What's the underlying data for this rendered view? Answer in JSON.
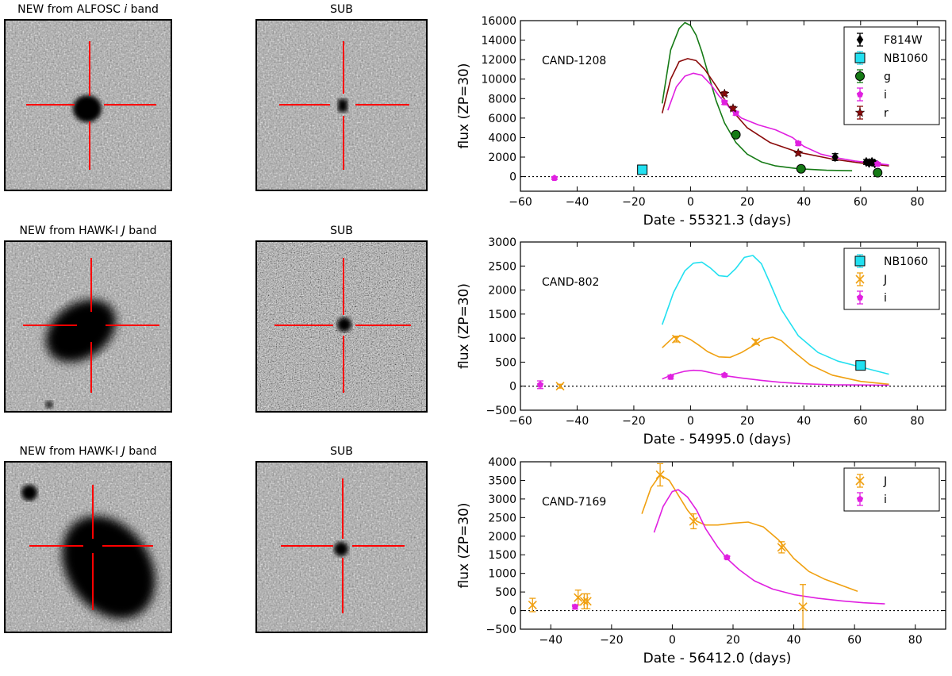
{
  "rows": [
    {
      "new_title_prefix": "NEW from ALFOSC ",
      "new_title_band": "i",
      "new_title_suffix": " band",
      "sub_title": "SUB"
    },
    {
      "new_title_prefix": "NEW from HAWK-I ",
      "new_title_band": "J",
      "new_title_suffix": " band",
      "sub_title": "SUB"
    },
    {
      "new_title_prefix": "NEW from HAWK-I ",
      "new_title_band": "J",
      "new_title_suffix": " band",
      "sub_title": "SUB"
    }
  ],
  "colors": {
    "F814W": "#000000",
    "NB1060": "#22e0f0",
    "g": "#157a15",
    "i": "#e020e0",
    "r": "#8a0a0a",
    "J": "#f0a010",
    "crosshair": "#ff0000"
  },
  "chart_data": [
    {
      "type": "line",
      "label": "CAND-1208",
      "ylabel": "flux (ZP=30)",
      "xlabel": "Date - 55321.3 (days)",
      "xlim": [
        -60,
        90
      ],
      "ylim": [
        -1500,
        16000
      ],
      "xticks": [
        -60,
        -40,
        -20,
        0,
        20,
        40,
        60,
        80
      ],
      "yticks": [
        0,
        2000,
        4000,
        6000,
        8000,
        10000,
        12000,
        14000,
        16000
      ],
      "xtick_labels": [
        "−60",
        "−40",
        "−20",
        "0",
        "20",
        "40",
        "60",
        "80"
      ],
      "ytick_labels": [
        "0",
        "2000",
        "4000",
        "6000",
        "8000",
        "10000",
        "12000",
        "14000",
        "16000"
      ],
      "legend": [
        "F814W",
        "NB1060",
        "g",
        "i",
        "r"
      ],
      "curves": [
        {
          "band": "g",
          "x": [
            -10,
            -7,
            -4,
            -2,
            0,
            2,
            4,
            6,
            9,
            12,
            16,
            20,
            25,
            30,
            38,
            48,
            57
          ],
          "y": [
            7500,
            13000,
            15200,
            15800,
            15500,
            14500,
            12800,
            10800,
            7800,
            5500,
            3500,
            2300,
            1500,
            1100,
            800,
            650,
            600
          ]
        },
        {
          "band": "r",
          "x": [
            -10,
            -7,
            -4,
            -1,
            2,
            5,
            9,
            14,
            20,
            28,
            38,
            50,
            60,
            70
          ],
          "y": [
            6500,
            10000,
            11800,
            12100,
            11900,
            11000,
            9300,
            7000,
            5000,
            3500,
            2500,
            1800,
            1400,
            1100
          ]
        },
        {
          "band": "i",
          "x": [
            -8,
            -5,
            -2,
            1,
            4,
            7,
            10,
            14,
            18,
            24,
            30,
            36,
            40,
            46,
            52,
            58,
            64,
            70
          ],
          "y": [
            6800,
            9200,
            10300,
            10600,
            10400,
            9500,
            8300,
            7000,
            6000,
            5300,
            4800,
            4000,
            3100,
            2300,
            1900,
            1600,
            1400,
            1200
          ]
        }
      ],
      "points": [
        {
          "band": "F814W",
          "marker": "diamond",
          "x": [
            51,
            62,
            63,
            64,
            65
          ],
          "y": [
            2000,
            1500,
            1400,
            1500,
            1350
          ],
          "err": [
            350,
            250,
            250,
            250,
            250
          ]
        },
        {
          "band": "NB1060",
          "marker": "square",
          "x": [
            -17
          ],
          "y": [
            700
          ],
          "err": [
            0
          ]
        },
        {
          "band": "g",
          "marker": "circle",
          "x": [
            16,
            39,
            66
          ],
          "y": [
            4300,
            800,
            400
          ],
          "err": [
            0,
            0,
            0
          ]
        },
        {
          "band": "i",
          "marker": "pentagon",
          "x": [
            -48,
            12,
            16,
            38,
            66
          ],
          "y": [
            -150,
            7600,
            6500,
            3400,
            1300
          ],
          "err": [
            150,
            200,
            200,
            200,
            150
          ]
        },
        {
          "band": "r",
          "marker": "star",
          "x": [
            12,
            15,
            38
          ],
          "y": [
            8500,
            7000,
            2400
          ],
          "err": [
            200,
            200,
            200
          ]
        }
      ]
    },
    {
      "type": "line",
      "label": "CAND-802",
      "ylabel": "flux (ZP=30)",
      "xlabel": "Date - 54995.0 (days)",
      "xlim": [
        -60,
        90
      ],
      "ylim": [
        -500,
        3000
      ],
      "xticks": [
        -60,
        -40,
        -20,
        0,
        20,
        40,
        60,
        80
      ],
      "yticks": [
        -500,
        0,
        500,
        1000,
        1500,
        2000,
        2500,
        3000
      ],
      "xtick_labels": [
        "−60",
        "−40",
        "−20",
        "0",
        "20",
        "40",
        "60",
        "80"
      ],
      "ytick_labels": [
        "−500",
        "0",
        "500",
        "1000",
        "1500",
        "2000",
        "2500",
        "3000"
      ],
      "legend": [
        "NB1060",
        "J",
        "i"
      ],
      "curves": [
        {
          "band": "NB1060",
          "x": [
            -10,
            -6,
            -2,
            1,
            4,
            7,
            10,
            13,
            16,
            19,
            22,
            25,
            28,
            32,
            38,
            45,
            52,
            60,
            70
          ],
          "y": [
            1280,
            1950,
            2400,
            2560,
            2580,
            2460,
            2300,
            2280,
            2450,
            2680,
            2720,
            2550,
            2150,
            1600,
            1050,
            700,
            520,
            400,
            250
          ]
        },
        {
          "band": "J",
          "x": [
            -10,
            -6,
            -3,
            0,
            3,
            6,
            10,
            14,
            18,
            22,
            26,
            29,
            32,
            36,
            42,
            50,
            60,
            70
          ],
          "y": [
            800,
            1020,
            1050,
            970,
            850,
            720,
            610,
            600,
            700,
            840,
            980,
            1020,
            950,
            740,
            450,
            230,
            100,
            40
          ]
        },
        {
          "band": "i",
          "x": [
            -10,
            -6,
            -2,
            1,
            4,
            8,
            12,
            18,
            25,
            32,
            40,
            50,
            60,
            70
          ],
          "y": [
            150,
            250,
            310,
            330,
            320,
            270,
            220,
            170,
            120,
            80,
            50,
            30,
            25,
            20
          ]
        }
      ],
      "points": [
        {
          "band": "NB1060",
          "marker": "square",
          "x": [
            60
          ],
          "y": [
            430
          ],
          "err": [
            0
          ]
        },
        {
          "band": "J",
          "marker": "x",
          "x": [
            -46,
            -5,
            23
          ],
          "y": [
            0,
            980,
            920
          ],
          "err": [
            40,
            60,
            50
          ]
        },
        {
          "band": "i",
          "marker": "pentagon",
          "x": [
            -53,
            -7,
            12
          ],
          "y": [
            30,
            190,
            230
          ],
          "err": [
            80,
            40,
            30
          ]
        }
      ]
    },
    {
      "type": "line",
      "label": "CAND-7169",
      "ylabel": "flux (ZP=30)",
      "xlabel": "Date - 56412.0 (days)",
      "xlim": [
        -50,
        90
      ],
      "ylim": [
        -500,
        4000
      ],
      "xticks": [
        -40,
        -20,
        0,
        20,
        40,
        60,
        80
      ],
      "yticks": [
        -500,
        0,
        500,
        1000,
        1500,
        2000,
        2500,
        3000,
        3500,
        4000
      ],
      "xtick_labels": [
        "−40",
        "−20",
        "0",
        "20",
        "40",
        "60",
        "80"
      ],
      "ytick_labels": [
        "−500",
        "0",
        "500",
        "1000",
        "1500",
        "2000",
        "2500",
        "3000",
        "3500",
        "4000"
      ],
      "legend": [
        "J",
        "i"
      ],
      "curves": [
        {
          "band": "J",
          "x": [
            -10,
            -7,
            -4,
            -1,
            2,
            5,
            8,
            11,
            15,
            20,
            25,
            30,
            35,
            40,
            45,
            50,
            55,
            61
          ],
          "y": [
            2600,
            3300,
            3650,
            3500,
            3100,
            2700,
            2400,
            2300,
            2300,
            2350,
            2380,
            2250,
            1900,
            1400,
            1050,
            850,
            700,
            520
          ]
        },
        {
          "band": "J",
          "x": [
            43,
            43.2
          ],
          "y": [
            100,
            100
          ]
        },
        {
          "band": "i",
          "x": [
            -6,
            -3,
            0,
            2,
            5,
            8,
            11,
            15,
            18,
            22,
            27,
            33,
            40,
            48,
            56,
            63,
            70
          ],
          "y": [
            2100,
            2800,
            3200,
            3250,
            3050,
            2700,
            2200,
            1700,
            1400,
            1100,
            800,
            580,
            430,
            330,
            260,
            210,
            180
          ]
        }
      ],
      "points": [
        {
          "band": "J",
          "marker": "x",
          "x": [
            -46,
            -31,
            -29,
            -28,
            -4,
            7,
            36,
            43
          ],
          "y": [
            150,
            350,
            250,
            250,
            3650,
            2400,
            1700,
            100
          ],
          "err": [
            180,
            200,
            200,
            200,
            300,
            200,
            150,
            600
          ]
        },
        {
          "band": "i",
          "marker": "pentagon",
          "x": [
            -32,
            18
          ],
          "y": [
            100,
            1430
          ],
          "err": [
            60,
            40
          ]
        }
      ]
    }
  ]
}
